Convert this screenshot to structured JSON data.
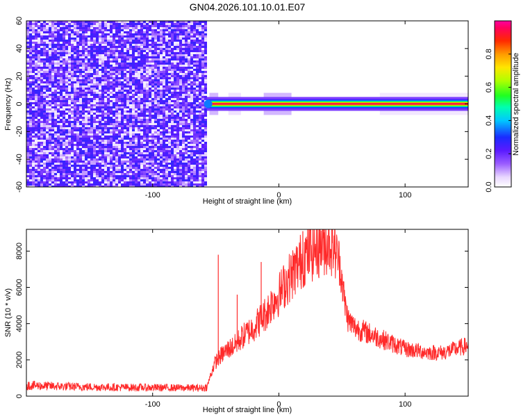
{
  "figure": {
    "title": "GN04.2026.101.10.01.E07"
  },
  "chart_data": [
    {
      "type": "heatmap",
      "title": "GN04.2026.101.10.01.E07",
      "xlabel": "Height of straight line (km)",
      "ylabel": "Frequency (Hz)",
      "xlim": [
        -200,
        150
      ],
      "ylim": [
        -60,
        60
      ],
      "x_ticks": [
        -100,
        0,
        100
      ],
      "y_ticks": [
        -60,
        -40,
        -20,
        0,
        20,
        40,
        60
      ],
      "colorbar": {
        "label": "Normalized spectral amplitude",
        "range": [
          0,
          1
        ],
        "ticks": [
          0.0,
          0.2,
          0.4,
          0.6,
          0.8
        ],
        "colormap": "rainbow (white-violet-blue-cyan-green-yellow-orange-red-magenta)"
      },
      "regions": [
        {
          "description": "broadband noise",
          "x_range": [
            -200,
            -57
          ],
          "y_range": [
            -60,
            60
          ],
          "amplitude_range": [
            0.0,
            0.2
          ]
        },
        {
          "description": "narrow band signal near 0 Hz",
          "x_range": [
            -57,
            150
          ],
          "y_center": 0,
          "y_halfwidth": 2,
          "peak_amplitude": 1.0
        }
      ],
      "grid": false
    },
    {
      "type": "line",
      "xlabel": "Height of straight line (km)",
      "ylabel": "SNR (10 * v/v)",
      "xlim": [
        -200,
        150
      ],
      "ylim": [
        0,
        9200
      ],
      "x_ticks": [
        -100,
        0,
        100
      ],
      "y_ticks": [
        0,
        2000,
        4000,
        6000,
        8000
      ],
      "color": "#ff2a2a",
      "series": [
        {
          "x": [
            -200,
            -180,
            -160,
            -140,
            -120,
            -100,
            -80,
            -60,
            -57,
            -52,
            -50,
            -45,
            -40,
            -35,
            -30,
            -25,
            -20,
            -15,
            -10,
            -5,
            0,
            5,
            10,
            15,
            20,
            25,
            30,
            35,
            40,
            43,
            45,
            48,
            50,
            52,
            55,
            60,
            70,
            80,
            90,
            100,
            110,
            120,
            130,
            140,
            150
          ],
          "y": [
            600,
            550,
            520,
            500,
            480,
            470,
            460,
            450,
            500,
            1600,
            1900,
            2300,
            2600,
            2800,
            3200,
            3500,
            3800,
            4200,
            4600,
            5200,
            5600,
            6200,
            6700,
            7200,
            7700,
            8000,
            8200,
            8400,
            8500,
            8400,
            8000,
            7400,
            6500,
            5200,
            4200,
            3800,
            3500,
            3200,
            2900,
            2600,
            2500,
            2400,
            2400,
            2600,
            2800
          ]
        }
      ],
      "spikes": [
        {
          "x": -48,
          "y": 7800
        },
        {
          "x": -33,
          "y": 5600
        },
        {
          "x": -14,
          "y": 7400
        },
        {
          "x": 19,
          "y": 9100
        },
        {
          "x": 42,
          "y": 9200
        }
      ],
      "grid": false
    }
  ]
}
